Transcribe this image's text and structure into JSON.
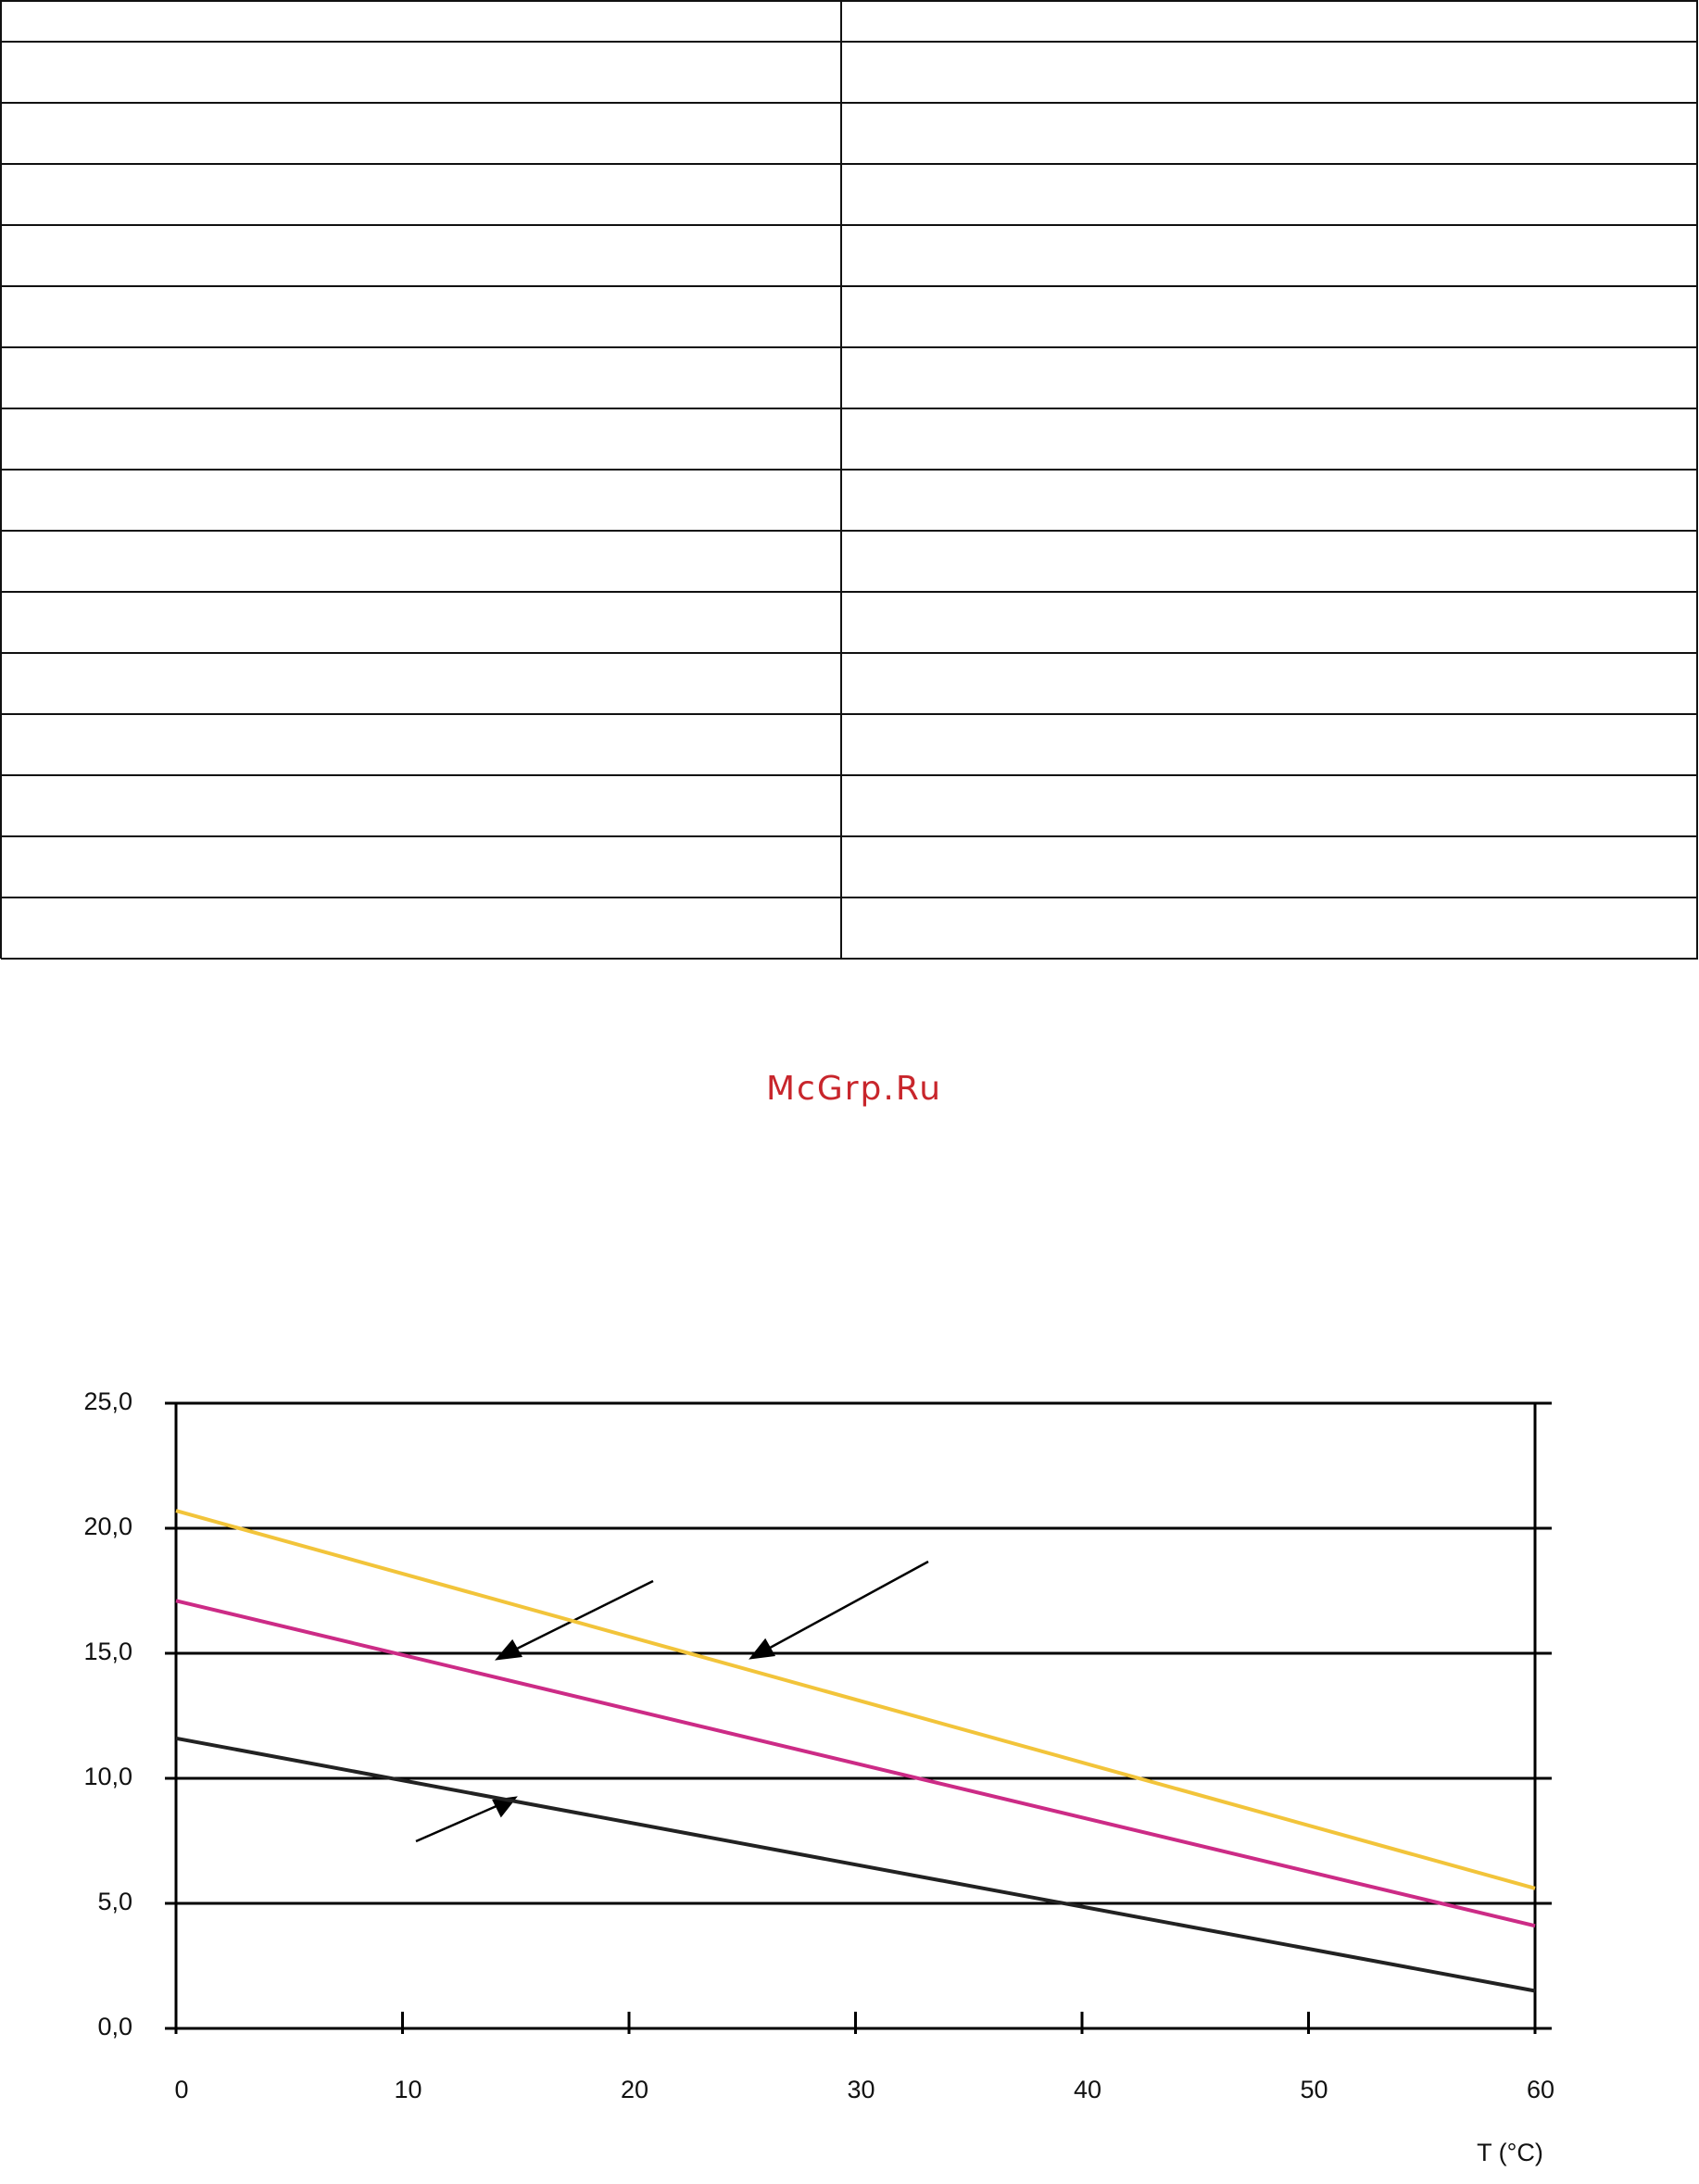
{
  "watermark": "McGrp.Ru",
  "chart_data": {
    "type": "line",
    "x": [
      0,
      60
    ],
    "series": [
      {
        "color": "#f2c43a",
        "values": [
          20.7,
          5.6
        ]
      },
      {
        "color": "#cc2b86",
        "values": [
          17.1,
          4.1
        ]
      },
      {
        "color": "#222222",
        "values": [
          11.6,
          1.5
        ]
      }
    ],
    "xlim": [
      0,
      60
    ],
    "xticks": [
      0,
      10,
      20,
      30,
      40,
      50,
      60
    ],
    "ylim": [
      0,
      25
    ],
    "yticks": [
      {
        "value": 0,
        "label": "0,0"
      },
      {
        "value": 5,
        "label": "5,0"
      },
      {
        "value": 10,
        "label": "10,0"
      },
      {
        "value": 15,
        "label": "15,0"
      },
      {
        "value": 20,
        "label": "20,0"
      },
      {
        "value": 25,
        "label": "25,0"
      }
    ],
    "xlabel": "T (°C)",
    "grid": true
  }
}
